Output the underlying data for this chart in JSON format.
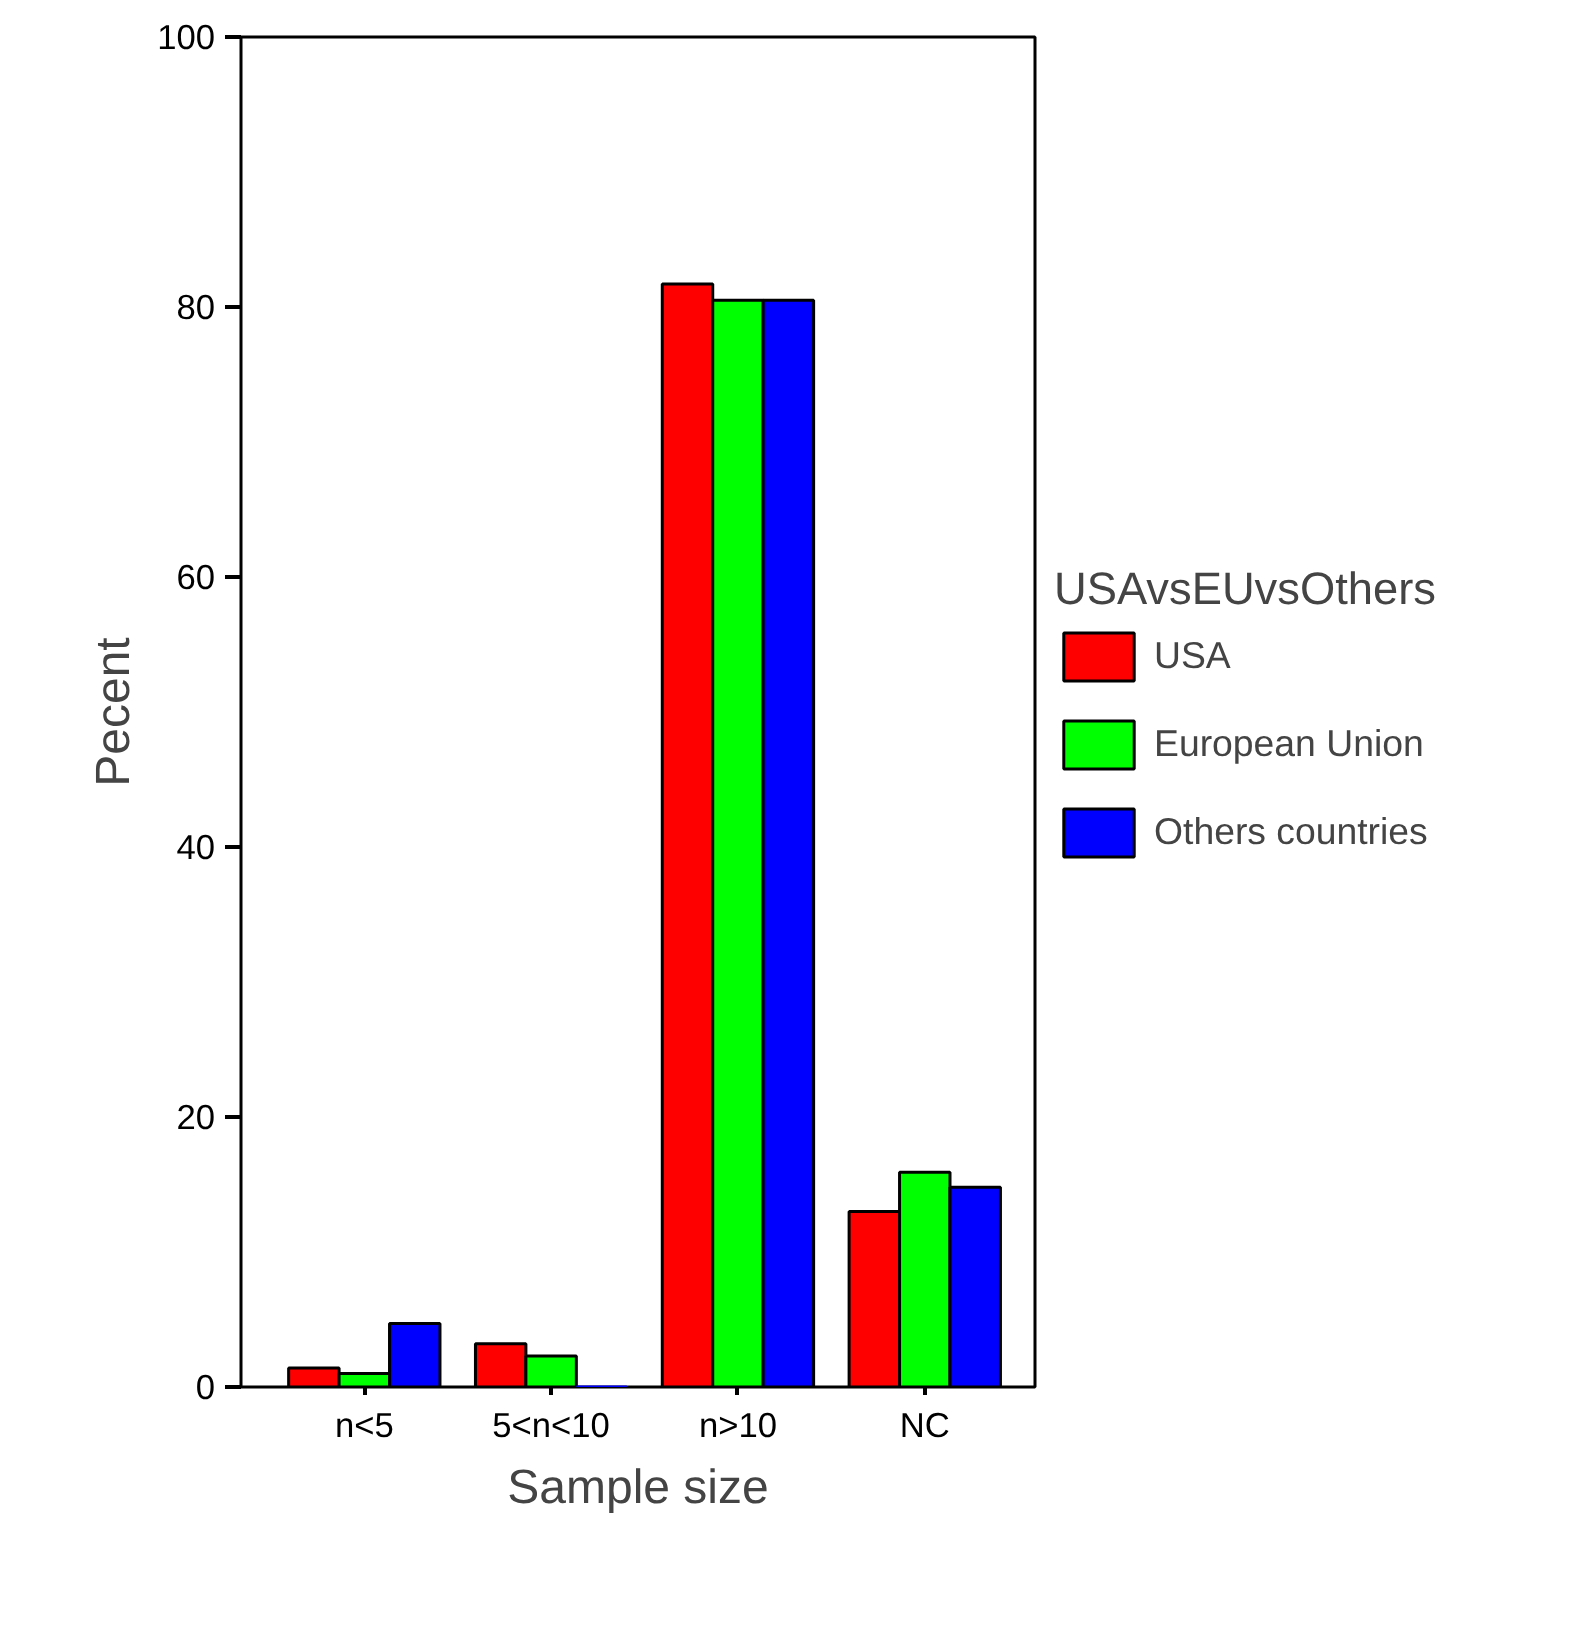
{
  "chart_data": {
    "type": "bar",
    "xlabel": "Sample size",
    "ylabel": "Pecent",
    "legend_title": "USAvsEUvsOthers",
    "categories": [
      "n<5",
      "5<n<10",
      "n>10",
      "NC"
    ],
    "series": [
      {
        "name": "USA",
        "color": "#ff0000",
        "values": [
          1.4,
          3.2,
          81.7,
          13.0
        ]
      },
      {
        "name": "European Union",
        "color": "#00ff00",
        "values": [
          1.0,
          2.3,
          80.5,
          15.9
        ]
      },
      {
        "name": "Others countries",
        "color": "#0000ff",
        "values": [
          4.7,
          0,
          80.5,
          14.8
        ]
      }
    ],
    "ylim": [
      0,
      100
    ],
    "yticks": [
      0,
      20,
      40,
      60,
      80,
      100
    ],
    "grid": false,
    "legend": "right"
  }
}
